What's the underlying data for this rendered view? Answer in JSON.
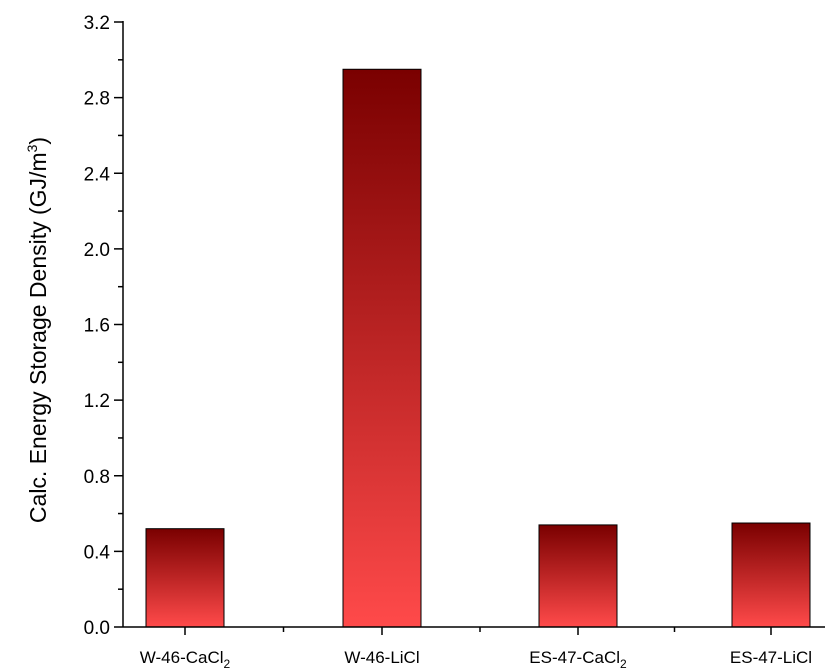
{
  "chart_data": {
    "type": "bar",
    "categories": [
      {
        "base": "W-46-CaCl",
        "sub": "2"
      },
      {
        "base": "W-46-LiCl",
        "sub": ""
      },
      {
        "base": "ES-47-CaCl",
        "sub": "2"
      },
      {
        "base": "ES-47-LiCl",
        "sub": ""
      }
    ],
    "values": [
      0.52,
      2.95,
      0.54,
      0.55
    ],
    "ylabel": {
      "base": "Calc. Energy Storage Density (GJ/m",
      "sup": "3",
      "tail": ")"
    },
    "xlabel": "",
    "title": "",
    "ylim": [
      0.0,
      3.2
    ],
    "yticks": [
      "0.0",
      "0.4",
      "0.8",
      "1.2",
      "1.6",
      "2.0",
      "2.4",
      "2.8",
      "3.2"
    ],
    "grid": false,
    "legend": "none",
    "colors": {
      "bar_top": "#7a0000",
      "bar_bottom": "#ff4a4a",
      "bar_edge": "#000000",
      "axis": "#000000"
    }
  }
}
